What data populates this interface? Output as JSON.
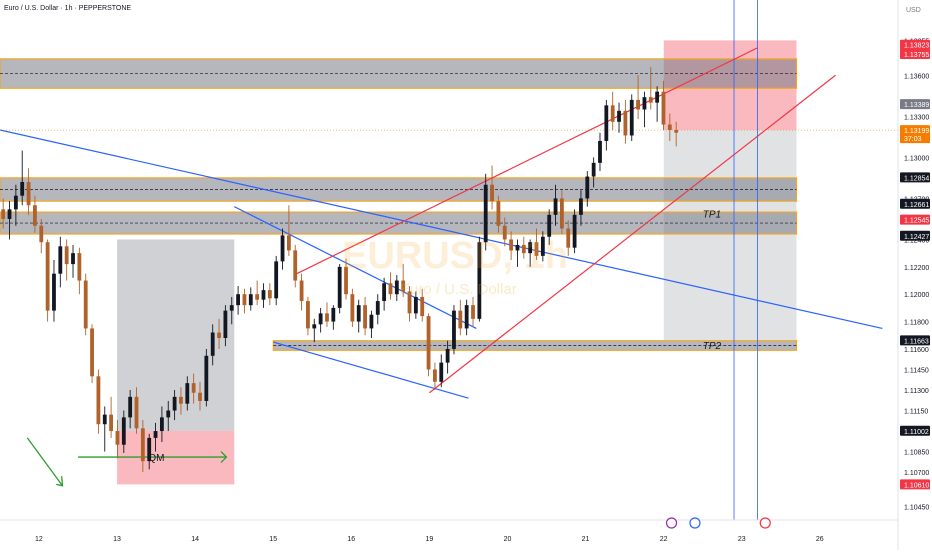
{
  "header": {
    "title": "Euro / U.S. Dollar · 1h · PEPPERSTONE"
  },
  "watermark": {
    "symbol": "EURUSD, 1h",
    "name": "Euro / U.S. Dollar"
  },
  "axis": {
    "currency": "USD",
    "x_ticks": [
      {
        "label": "12",
        "day": 12
      },
      {
        "label": "13",
        "day": 13
      },
      {
        "label": "14",
        "day": 14
      },
      {
        "label": "15",
        "day": 15
      },
      {
        "label": "16",
        "day": 16
      },
      {
        "label": "19",
        "day": 17
      },
      {
        "label": "20",
        "day": 18
      },
      {
        "label": "21",
        "day": 19
      },
      {
        "label": "22",
        "day": 20
      },
      {
        "label": "23",
        "day": 21
      },
      {
        "label": "26",
        "day": 22
      }
    ],
    "y_ticks": [
      1.13855,
      1.136,
      1.133,
      1.13,
      1.127,
      1.124,
      1.122,
      1.12,
      1.118,
      1.116,
      1.1145,
      1.113,
      1.1115,
      1.11,
      1.1085,
      1.107,
      1.1045
    ],
    "y_tick_labels": [
      "1.13855",
      "1.13600",
      "1.13300",
      "1.13000",
      "1.12700",
      "1.12400",
      "1.12200",
      "1.12000",
      "1.11800",
      "1.11600",
      "1.11450",
      "1.11300",
      "1.11150",
      "1.11000",
      "1.10850",
      "1.10700",
      "1.10450"
    ]
  },
  "price_badges": [
    {
      "label": "1.13823",
      "price": 1.13823,
      "bg": "#f23645",
      "fg": "#ffffff"
    },
    {
      "label": "1.13755",
      "price": 1.13755,
      "bg": "#f23645",
      "fg": "#ffffff"
    },
    {
      "label": "1.13389",
      "price": 1.13389,
      "bg": "#787b86",
      "fg": "#ffffff"
    },
    {
      "label": "1.13199",
      "price": 1.13199,
      "bg": "#f57c00",
      "fg": "#ffffff",
      "sub": "37:03"
    },
    {
      "label": "1.12854",
      "price": 1.12854,
      "bg": "#131722",
      "fg": "#ffffff"
    },
    {
      "label": "1.12661",
      "price": 1.12661,
      "bg": "#131722",
      "fg": "#ffffff"
    },
    {
      "label": "1.12545",
      "price": 1.12545,
      "bg": "#f23645",
      "fg": "#ffffff"
    },
    {
      "label": "1.12427",
      "price": 1.12427,
      "bg": "#131722",
      "fg": "#ffffff"
    },
    {
      "label": "1.11663",
      "price": 1.11663,
      "bg": "#131722",
      "fg": "#ffffff"
    },
    {
      "label": "1.11002",
      "price": 1.11002,
      "bg": "#131722",
      "fg": "#ffffff"
    },
    {
      "label": "1.10610",
      "price": 1.1061,
      "bg": "#f23645",
      "fg": "#ffffff"
    }
  ],
  "chart_data": {
    "type": "candlestick",
    "title": "Euro / U.S. Dollar · 1h · PEPPERSTONE",
    "ylim": [
      1.1035,
      1.1415
    ],
    "x_range": [
      11.5,
      23.0
    ],
    "colors": {
      "up": "#131722",
      "down": "#b0622a",
      "zone": "#f5a623",
      "zone_fill": "#787b86",
      "trend": "#2962ff",
      "channel": "#f23645",
      "arrow": "#2e9e2e"
    },
    "zones": [
      {
        "name": "supply-zone-top",
        "x0": 11.5,
        "x1": 21.7,
        "y0": 1.13505,
        "y1": 1.1372
      },
      {
        "name": "mid-zone-upper",
        "x0": 11.5,
        "x1": 21.7,
        "y0": 1.1268,
        "y1": 1.1285
      },
      {
        "name": "mid-zone-lower",
        "x0": 11.5,
        "x1": 21.7,
        "y0": 1.1244,
        "y1": 1.126
      },
      {
        "name": "tp2-zone",
        "x0": 15.0,
        "x1": 21.7,
        "y0": 1.1159,
        "y1": 1.1166
      }
    ],
    "zone_labels": [
      {
        "label": "TP1",
        "day": 20.5,
        "price": 1.1256
      },
      {
        "label": "TP2",
        "day": 20.5,
        "price": 1.116
      }
    ],
    "position": {
      "x0": 20.0,
      "x1": 21.7,
      "entry": 1.132,
      "stop": 1.13855,
      "target": 1.11663
    },
    "qm_box": {
      "x0": 13.0,
      "x1": 14.5,
      "top": 1.124,
      "bottom": 1.11002
    },
    "qm_stop": {
      "x0": 13.0,
      "x1": 14.5,
      "top": 1.11002,
      "bottom": 1.1061
    },
    "qm_label": "QM",
    "trendlines": [
      {
        "color": "blue",
        "x0": 11.5,
        "y0": 1.132,
        "x1": 22.8,
        "y1": 1.1175
      },
      {
        "color": "blue",
        "x0": 14.5,
        "y0": 1.1264,
        "x1": 17.6,
        "y1": 1.1175
      },
      {
        "color": "blue",
        "x0": 15.0,
        "y0": 1.1165,
        "x1": 17.5,
        "y1": 1.1124
      },
      {
        "color": "red",
        "x0": 15.3,
        "y0": 1.1215,
        "x1": 21.2,
        "y1": 1.138
      },
      {
        "color": "red",
        "x0": 17.0,
        "y0": 1.1128,
        "x1": 22.2,
        "y1": 1.136
      }
    ],
    "vlines": [
      20.9,
      21.2
    ],
    "events": [
      20.1,
      20.4,
      21.3
    ],
    "candles": [
      {
        "o": 1.1262,
        "h": 1.127,
        "l": 1.1248,
        "c": 1.1255
      },
      {
        "o": 1.1255,
        "h": 1.1268,
        "l": 1.124,
        "c": 1.1262
      },
      {
        "o": 1.1262,
        "h": 1.128,
        "l": 1.125,
        "c": 1.1272
      },
      {
        "o": 1.1272,
        "h": 1.1305,
        "l": 1.1265,
        "c": 1.1282
      },
      {
        "o": 1.1282,
        "h": 1.1292,
        "l": 1.1258,
        "c": 1.1265
      },
      {
        "o": 1.1265,
        "h": 1.1272,
        "l": 1.1245,
        "c": 1.125
      },
      {
        "o": 1.125,
        "h": 1.1255,
        "l": 1.123,
        "c": 1.1238
      },
      {
        "o": 1.1238,
        "h": 1.124,
        "l": 1.118,
        "c": 1.1188
      },
      {
        "o": 1.1188,
        "h": 1.1225,
        "l": 1.118,
        "c": 1.1215
      },
      {
        "o": 1.1215,
        "h": 1.1242,
        "l": 1.1205,
        "c": 1.1235
      },
      {
        "o": 1.1235,
        "h": 1.124,
        "l": 1.121,
        "c": 1.1222
      },
      {
        "o": 1.1222,
        "h": 1.1236,
        "l": 1.1212,
        "c": 1.123
      },
      {
        "o": 1.123,
        "h": 1.1234,
        "l": 1.12,
        "c": 1.121
      },
      {
        "o": 1.121,
        "h": 1.1215,
        "l": 1.117,
        "c": 1.1175
      },
      {
        "o": 1.1175,
        "h": 1.1178,
        "l": 1.1135,
        "c": 1.114
      },
      {
        "o": 1.114,
        "h": 1.1145,
        "l": 1.1098,
        "c": 1.1105
      },
      {
        "o": 1.1105,
        "h": 1.1118,
        "l": 1.1085,
        "c": 1.1112
      },
      {
        "o": 1.1112,
        "h": 1.1125,
        "l": 1.1095,
        "c": 1.11
      },
      {
        "o": 1.11,
        "h": 1.1108,
        "l": 1.108,
        "c": 1.109
      },
      {
        "o": 1.109,
        "h": 1.1115,
        "l": 1.1084,
        "c": 1.111
      },
      {
        "o": 1.111,
        "h": 1.113,
        "l": 1.1102,
        "c": 1.1125
      },
      {
        "o": 1.1125,
        "h": 1.1132,
        "l": 1.1098,
        "c": 1.1102
      },
      {
        "o": 1.1102,
        "h": 1.1108,
        "l": 1.107,
        "c": 1.1078
      },
      {
        "o": 1.1078,
        "h": 1.1098,
        "l": 1.1072,
        "c": 1.1095
      },
      {
        "o": 1.1095,
        "h": 1.1106,
        "l": 1.1085,
        "c": 1.11
      },
      {
        "o": 1.11,
        "h": 1.1118,
        "l": 1.1092,
        "c": 1.111
      },
      {
        "o": 1.111,
        "h": 1.1122,
        "l": 1.11,
        "c": 1.1115
      },
      {
        "o": 1.1115,
        "h": 1.113,
        "l": 1.1108,
        "c": 1.1125
      },
      {
        "o": 1.1125,
        "h": 1.1132,
        "l": 1.1112,
        "c": 1.112
      },
      {
        "o": 1.112,
        "h": 1.114,
        "l": 1.1115,
        "c": 1.1135
      },
      {
        "o": 1.1135,
        "h": 1.1142,
        "l": 1.112,
        "c": 1.1128
      },
      {
        "o": 1.1128,
        "h": 1.1136,
        "l": 1.1115,
        "c": 1.1122
      },
      {
        "o": 1.1122,
        "h": 1.116,
        "l": 1.1118,
        "c": 1.1155
      },
      {
        "o": 1.1155,
        "h": 1.1178,
        "l": 1.1148,
        "c": 1.1172
      },
      {
        "o": 1.1172,
        "h": 1.1182,
        "l": 1.116,
        "c": 1.1168
      },
      {
        "o": 1.1168,
        "h": 1.1192,
        "l": 1.1162,
        "c": 1.1188
      },
      {
        "o": 1.1188,
        "h": 1.1198,
        "l": 1.1178,
        "c": 1.1192
      },
      {
        "o": 1.1192,
        "h": 1.1206,
        "l": 1.1185,
        "c": 1.12
      },
      {
        "o": 1.12,
        "h": 1.1204,
        "l": 1.1186,
        "c": 1.1192
      },
      {
        "o": 1.1192,
        "h": 1.1205,
        "l": 1.1188,
        "c": 1.12
      },
      {
        "o": 1.12,
        "h": 1.121,
        "l": 1.1192,
        "c": 1.1196
      },
      {
        "o": 1.1196,
        "h": 1.1208,
        "l": 1.119,
        "c": 1.1203
      },
      {
        "o": 1.1203,
        "h": 1.1208,
        "l": 1.1192,
        "c": 1.1197
      },
      {
        "o": 1.1197,
        "h": 1.1228,
        "l": 1.1192,
        "c": 1.1224
      },
      {
        "o": 1.1224,
        "h": 1.1248,
        "l": 1.1218,
        "c": 1.1243
      },
      {
        "o": 1.1243,
        "h": 1.1265,
        "l": 1.1228,
        "c": 1.1232
      },
      {
        "o": 1.1232,
        "h": 1.1236,
        "l": 1.1205,
        "c": 1.121
      },
      {
        "o": 1.121,
        "h": 1.1215,
        "l": 1.1188,
        "c": 1.1195
      },
      {
        "o": 1.1195,
        "h": 1.1198,
        "l": 1.117,
        "c": 1.1175
      },
      {
        "o": 1.1175,
        "h": 1.1182,
        "l": 1.1165,
        "c": 1.1178
      },
      {
        "o": 1.1178,
        "h": 1.119,
        "l": 1.1172,
        "c": 1.1186
      },
      {
        "o": 1.1186,
        "h": 1.1194,
        "l": 1.1176,
        "c": 1.118
      },
      {
        "o": 1.118,
        "h": 1.1192,
        "l": 1.1174,
        "c": 1.119
      },
      {
        "o": 1.119,
        "h": 1.1222,
        "l": 1.1186,
        "c": 1.122
      },
      {
        "o": 1.122,
        "h": 1.1226,
        "l": 1.1196,
        "c": 1.12
      },
      {
        "o": 1.12,
        "h": 1.1204,
        "l": 1.1176,
        "c": 1.118
      },
      {
        "o": 1.118,
        "h": 1.1196,
        "l": 1.1172,
        "c": 1.1192
      },
      {
        "o": 1.1192,
        "h": 1.1198,
        "l": 1.117,
        "c": 1.1175
      },
      {
        "o": 1.1175,
        "h": 1.1188,
        "l": 1.1168,
        "c": 1.1185
      },
      {
        "o": 1.1185,
        "h": 1.12,
        "l": 1.1178,
        "c": 1.1195
      },
      {
        "o": 1.1195,
        "h": 1.1212,
        "l": 1.1188,
        "c": 1.1208
      },
      {
        "o": 1.1208,
        "h": 1.1216,
        "l": 1.1196,
        "c": 1.12
      },
      {
        "o": 1.12,
        "h": 1.1214,
        "l": 1.1195,
        "c": 1.121
      },
      {
        "o": 1.121,
        "h": 1.1222,
        "l": 1.1198,
        "c": 1.1202
      },
      {
        "o": 1.1202,
        "h": 1.1206,
        "l": 1.118,
        "c": 1.1186
      },
      {
        "o": 1.1186,
        "h": 1.1202,
        "l": 1.1182,
        "c": 1.1198
      },
      {
        "o": 1.1198,
        "h": 1.1204,
        "l": 1.118,
        "c": 1.1184
      },
      {
        "o": 1.1184,
        "h": 1.1186,
        "l": 1.114,
        "c": 1.1145
      },
      {
        "o": 1.1145,
        "h": 1.115,
        "l": 1.113,
        "c": 1.1136
      },
      {
        "o": 1.1136,
        "h": 1.1156,
        "l": 1.1132,
        "c": 1.115
      },
      {
        "o": 1.115,
        "h": 1.1166,
        "l": 1.1142,
        "c": 1.116
      },
      {
        "o": 1.116,
        "h": 1.1192,
        "l": 1.1156,
        "c": 1.1188
      },
      {
        "o": 1.1188,
        "h": 1.1196,
        "l": 1.117,
        "c": 1.1175
      },
      {
        "o": 1.1175,
        "h": 1.1196,
        "l": 1.117,
        "c": 1.1192
      },
      {
        "o": 1.1192,
        "h": 1.1198,
        "l": 1.1176,
        "c": 1.1182
      },
      {
        "o": 1.1182,
        "h": 1.1242,
        "l": 1.118,
        "c": 1.1238
      },
      {
        "o": 1.1238,
        "h": 1.1288,
        "l": 1.1232,
        "c": 1.128
      },
      {
        "o": 1.128,
        "h": 1.1294,
        "l": 1.1262,
        "c": 1.1268
      },
      {
        "o": 1.1268,
        "h": 1.1272,
        "l": 1.1245,
        "c": 1.125
      },
      {
        "o": 1.125,
        "h": 1.1256,
        "l": 1.1235,
        "c": 1.124
      },
      {
        "o": 1.124,
        "h": 1.1246,
        "l": 1.1225,
        "c": 1.1232
      },
      {
        "o": 1.1232,
        "h": 1.124,
        "l": 1.122,
        "c": 1.1236
      },
      {
        "o": 1.1236,
        "h": 1.1242,
        "l": 1.1226,
        "c": 1.123
      },
      {
        "o": 1.123,
        "h": 1.124,
        "l": 1.122,
        "c": 1.1238
      },
      {
        "o": 1.1238,
        "h": 1.1248,
        "l": 1.1225,
        "c": 1.1228
      },
      {
        "o": 1.1228,
        "h": 1.1246,
        "l": 1.1224,
        "c": 1.1242
      },
      {
        "o": 1.1242,
        "h": 1.1262,
        "l": 1.1236,
        "c": 1.1258
      },
      {
        "o": 1.1258,
        "h": 1.128,
        "l": 1.125,
        "c": 1.127
      },
      {
        "o": 1.127,
        "h": 1.1276,
        "l": 1.1244,
        "c": 1.1248
      },
      {
        "o": 1.1248,
        "h": 1.1254,
        "l": 1.1228,
        "c": 1.1234
      },
      {
        "o": 1.1234,
        "h": 1.1262,
        "l": 1.123,
        "c": 1.1258
      },
      {
        "o": 1.1258,
        "h": 1.1276,
        "l": 1.125,
        "c": 1.127
      },
      {
        "o": 1.127,
        "h": 1.129,
        "l": 1.1264,
        "c": 1.1286
      },
      {
        "o": 1.1286,
        "h": 1.13,
        "l": 1.1278,
        "c": 1.1296
      },
      {
        "o": 1.1296,
        "h": 1.1318,
        "l": 1.129,
        "c": 1.1312
      },
      {
        "o": 1.1312,
        "h": 1.1342,
        "l": 1.1305,
        "c": 1.1338
      },
      {
        "o": 1.1338,
        "h": 1.1348,
        "l": 1.132,
        "c": 1.1326
      },
      {
        "o": 1.1326,
        "h": 1.134,
        "l": 1.1318,
        "c": 1.1334
      },
      {
        "o": 1.1334,
        "h": 1.1342,
        "l": 1.131,
        "c": 1.1316
      },
      {
        "o": 1.1316,
        "h": 1.1346,
        "l": 1.1312,
        "c": 1.1342
      },
      {
        "o": 1.1342,
        "h": 1.136,
        "l": 1.1328,
        "c": 1.1335
      },
      {
        "o": 1.1335,
        "h": 1.1348,
        "l": 1.1322,
        "c": 1.1344
      },
      {
        "o": 1.1344,
        "h": 1.1366,
        "l": 1.1335,
        "c": 1.134
      },
      {
        "o": 1.134,
        "h": 1.1352,
        "l": 1.1326,
        "c": 1.1348
      },
      {
        "o": 1.1348,
        "h": 1.1356,
        "l": 1.132,
        "c": 1.1324
      },
      {
        "o": 1.1324,
        "h": 1.1332,
        "l": 1.1312,
        "c": 1.132
      },
      {
        "o": 1.132,
        "h": 1.1326,
        "l": 1.1308,
        "c": 1.1318
      }
    ]
  }
}
